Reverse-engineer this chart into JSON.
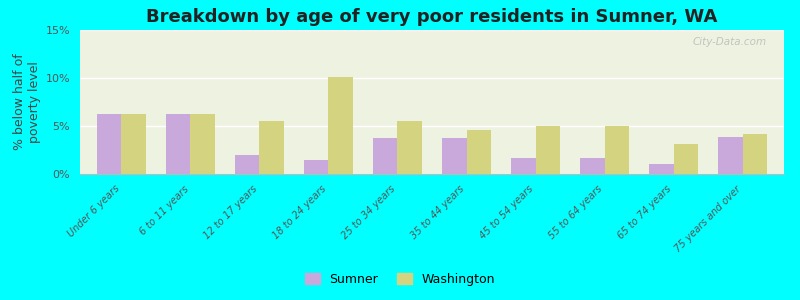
{
  "title": "Breakdown by age of very poor residents in Sumner, WA",
  "ylabel": "% below half of\npoverty level",
  "categories": [
    "Under 6 years",
    "6 to 11 years",
    "12 to 17 years",
    "18 to 24 years",
    "25 to 34 years",
    "35 to 44 years",
    "45 to 54 years",
    "55 to 64 years",
    "65 to 74 years",
    "75 years and over"
  ],
  "sumner_values": [
    6.3,
    6.3,
    2.0,
    1.5,
    3.7,
    3.7,
    1.7,
    1.7,
    1.0,
    3.9
  ],
  "washington_values": [
    6.2,
    6.2,
    5.5,
    10.1,
    5.5,
    4.6,
    5.0,
    5.0,
    3.1,
    4.2
  ],
  "sumner_color": "#c9a8dc",
  "washington_color": "#d4d480",
  "background_outer": "#00ffff",
  "background_plot": "#eef2e0",
  "ylim": [
    0,
    15
  ],
  "yticks": [
    0,
    5,
    10,
    15
  ],
  "ytick_labels": [
    "0%",
    "5%",
    "10%",
    "15%"
  ],
  "title_fontsize": 13,
  "axis_label_fontsize": 9,
  "tick_fontsize": 8,
  "watermark": "City-Data.com",
  "bar_width": 0.35
}
